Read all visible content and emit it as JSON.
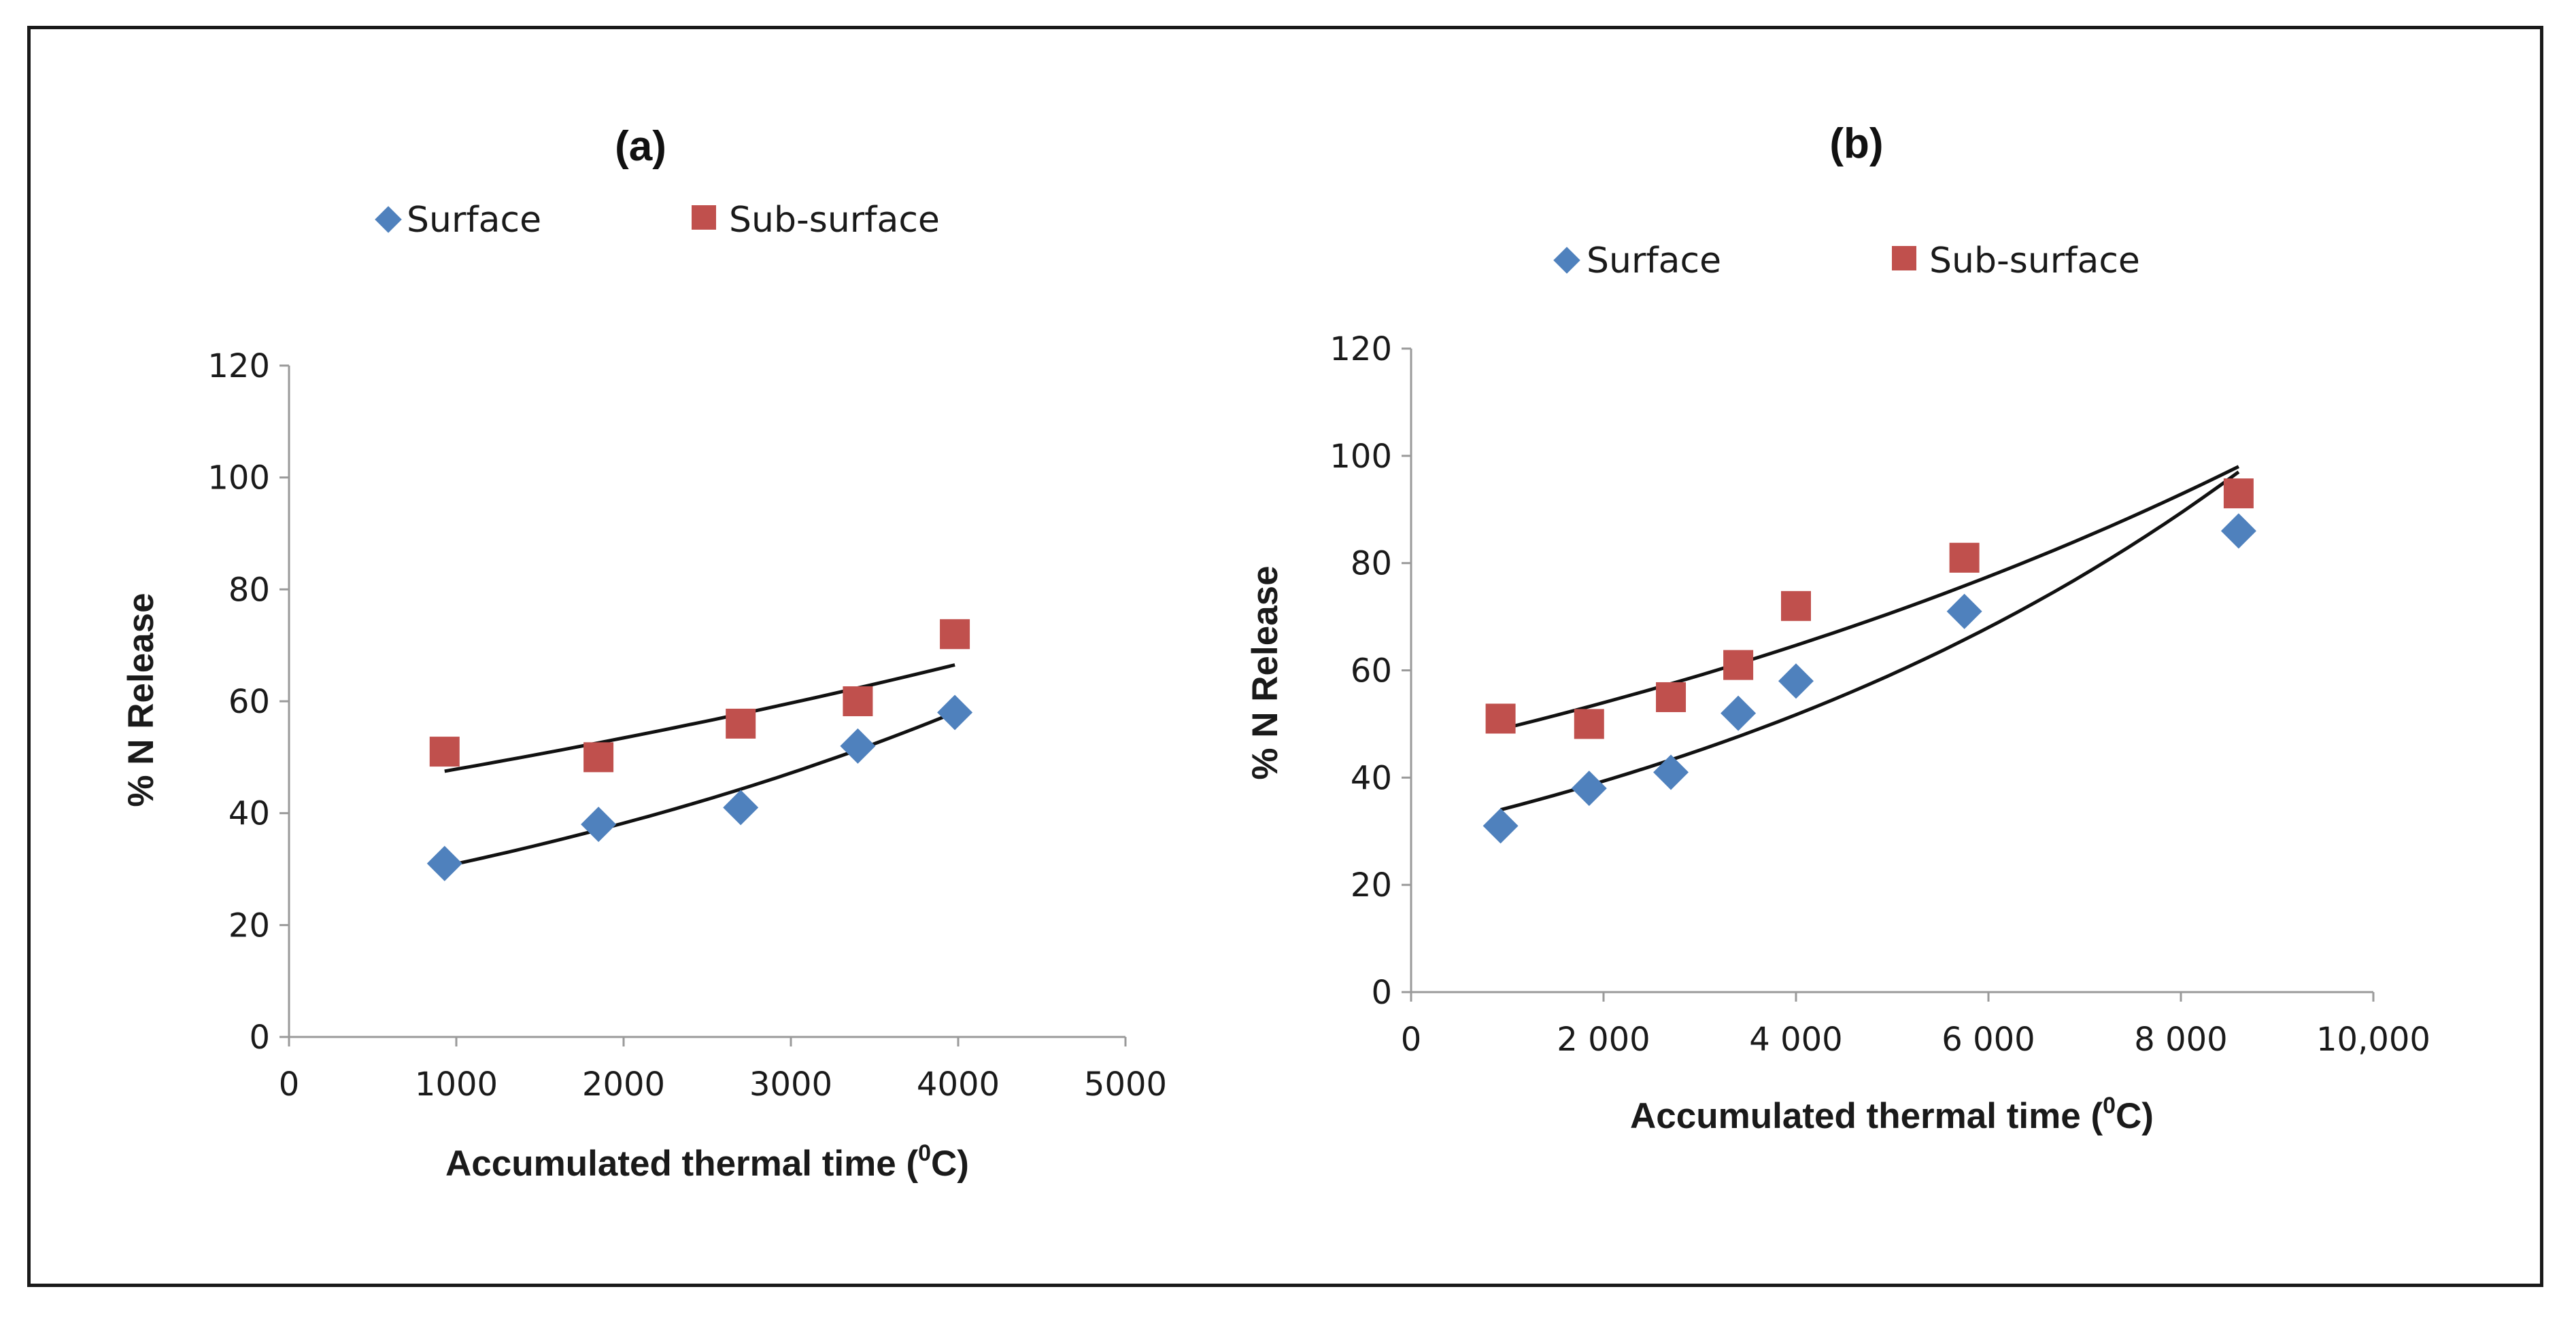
{
  "chart_data": [
    {
      "type": "scatter",
      "title": "(a)",
      "xlabel": "Accumulated thermal time (",
      "xlabel_sup": "0",
      "xlabel_tail": "C)",
      "ylabel": "% N Release",
      "xlim": [
        0,
        5000
      ],
      "ylim": [
        0,
        120
      ],
      "x_ticks": [
        0,
        1000,
        2000,
        3000,
        4000,
        5000
      ],
      "x_tick_labels": [
        "0",
        "1000",
        "2000",
        "3000",
        "4000",
        "5000"
      ],
      "y_ticks": [
        0,
        20,
        40,
        60,
        80,
        100,
        120
      ],
      "y_tick_labels": [
        "0",
        "20",
        "40",
        "60",
        "80",
        "100",
        "120"
      ],
      "legend": "top",
      "series": [
        {
          "name": "Surface",
          "marker": "diamond",
          "color": "#4f81bd",
          "x": [
            930,
            1850,
            2700,
            3400,
            3980
          ],
          "y": [
            31,
            38,
            41,
            52,
            58
          ],
          "trend": {
            "type": "exponential",
            "x_start": 930,
            "x_end": 3980,
            "y_start": 30.5,
            "y_end": 58
          }
        },
        {
          "name": "Sub-surface",
          "marker": "square",
          "color": "#c0504d",
          "x": [
            930,
            1850,
            2700,
            3400,
            3980
          ],
          "y": [
            51,
            50,
            56,
            60,
            72
          ],
          "trend": {
            "type": "exponential",
            "x_start": 930,
            "x_end": 3980,
            "y_start": 47.5,
            "y_end": 66.5
          }
        }
      ]
    },
    {
      "type": "scatter",
      "title": "(b)",
      "xlabel": "Accumulated thermal time (",
      "xlabel_sup": "0",
      "xlabel_tail": "C)",
      "ylabel": "% N Release",
      "xlim": [
        0,
        10000
      ],
      "ylim": [
        0,
        120
      ],
      "x_ticks": [
        0,
        2000,
        4000,
        6000,
        8000,
        10000
      ],
      "x_tick_labels": [
        "0",
        "2 000",
        "4 000",
        "6 000",
        "8 000",
        "10,000"
      ],
      "y_ticks": [
        0,
        20,
        40,
        60,
        80,
        100,
        120
      ],
      "y_tick_labels": [
        "0",
        "20",
        "40",
        "60",
        "80",
        "100",
        "120"
      ],
      "legend": "top",
      "series": [
        {
          "name": "Surface",
          "marker": "diamond",
          "color": "#4f81bd",
          "x": [
            930,
            1850,
            2700,
            3400,
            4000,
            5750,
            8600
          ],
          "y": [
            31,
            38,
            41,
            52,
            58,
            71,
            86
          ],
          "trend": {
            "type": "exponential",
            "x_start": 930,
            "x_end": 8600,
            "y_start": 34,
            "y_end": 97
          }
        },
        {
          "name": "Sub-surface",
          "marker": "square",
          "color": "#c0504d",
          "x": [
            930,
            1850,
            2700,
            3400,
            4000,
            5750,
            8600
          ],
          "y": [
            51,
            50,
            55,
            61,
            72,
            81,
            93
          ],
          "trend": {
            "type": "exponential",
            "x_start": 930,
            "x_end": 8600,
            "y_start": 49,
            "y_end": 98
          }
        }
      ]
    }
  ]
}
